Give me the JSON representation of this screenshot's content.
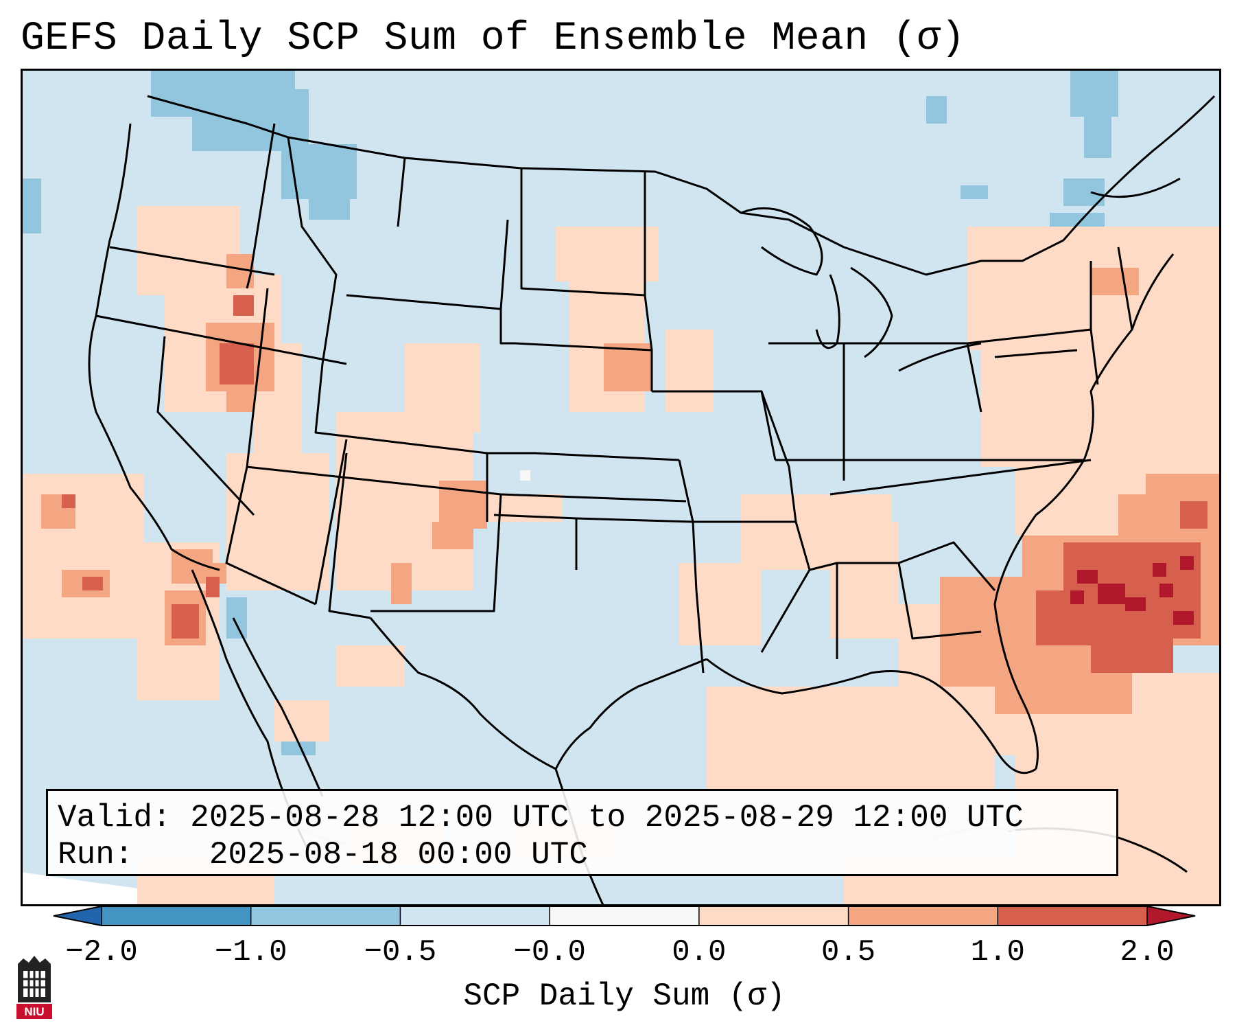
{
  "title": "GEFS Daily SCP Sum of Ensemble Mean (σ)",
  "info": {
    "valid_label": "Valid:",
    "valid_value": "2025-08-28 12:00 UTC to 2025-08-29 12:00 UTC",
    "run_label": "Run:",
    "run_value": "2025-08-18 00:00 UTC"
  },
  "colorbar": {
    "label": "SCP Daily Sum (σ)",
    "ticks": [
      "−2.0",
      "−1.0",
      "−0.5",
      "−0.0",
      "0.0",
      "0.5",
      "1.0",
      "2.0"
    ],
    "bins": [
      {
        "range": "below -2.0",
        "color": "#2166ac"
      },
      {
        "range": "-2.0 to -1.0",
        "color": "#4393c3"
      },
      {
        "range": "-1.0 to -0.5",
        "color": "#92c5de"
      },
      {
        "range": "-0.5 to -0.0",
        "color": "#d1e5f0"
      },
      {
        "range": "-0.0 to 0.0",
        "color": "#f7f7f7"
      },
      {
        "range": "0.0 to 0.5",
        "color": "#fddbc7"
      },
      {
        "range": "0.5 to 1.0",
        "color": "#f4a582"
      },
      {
        "range": "1.0 to 2.0",
        "color": "#d6604d"
      },
      {
        "range": "above 2.0",
        "color": "#b2182b"
      }
    ]
  },
  "logo": {
    "text": "NIU",
    "color": "#c8102e"
  },
  "map": {
    "region": "Contiguous United States",
    "background_value": "-0.5 to -0.0",
    "notable_features": [
      {
        "name": "Positive anomaly maximum off Southeast US coast",
        "category": "1.0 to 2.0 / above 2.0"
      },
      {
        "name": "Positive anomaly over northern Nevada / Great Basin",
        "category": "0.5 to 1.0"
      },
      {
        "name": "Positive anomaly over Colorado / New Mexico",
        "category": "0.0 to 1.0"
      },
      {
        "name": "Negative anomalies over Pacific Northwest / northern Rockies",
        "category": "-1.0 to -0.5"
      }
    ]
  }
}
